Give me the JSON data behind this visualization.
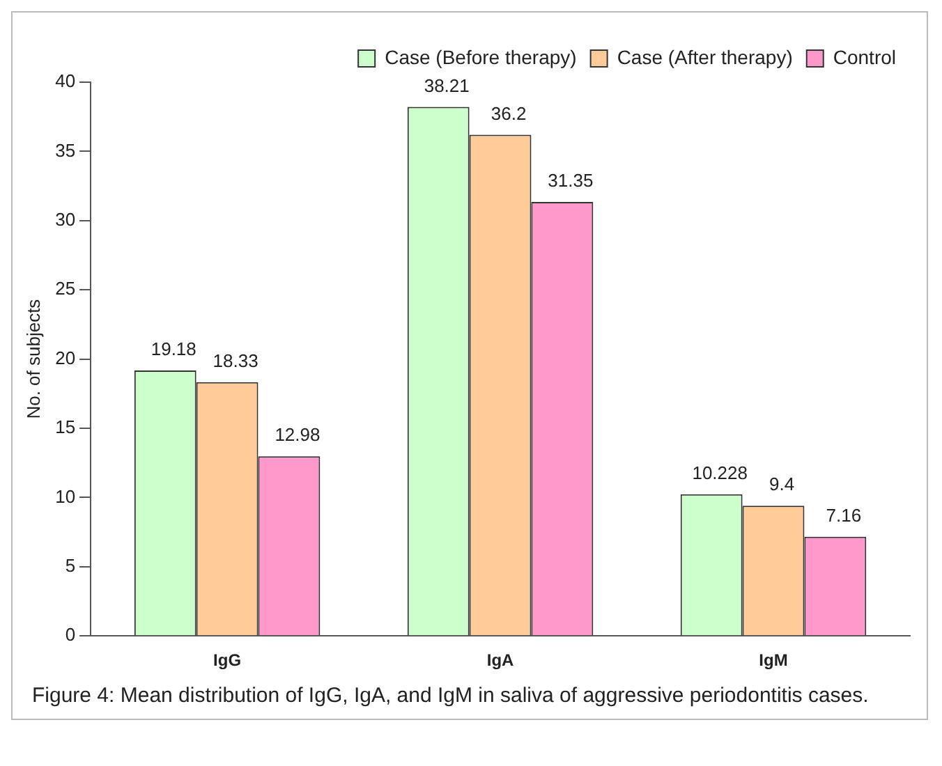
{
  "chart_data": {
    "type": "bar",
    "ylabel": "No. of subjects",
    "categories": [
      "IgG",
      "IgA",
      "IgM"
    ],
    "series": [
      {
        "name": "Case (Before therapy)",
        "color": "#ccffcc",
        "values": [
          19.18,
          38.21,
          10.228
        ]
      },
      {
        "name": "Case (After therapy)",
        "color": "#ffcc99",
        "values": [
          18.33,
          36.2,
          9.4
        ]
      },
      {
        "name": "Control",
        "color": "#ff99cc",
        "values": [
          12.98,
          31.35,
          7.16
        ]
      }
    ],
    "ylim": [
      0,
      40
    ],
    "yticks": [
      0,
      5,
      10,
      15,
      20,
      25,
      30,
      35,
      40
    ],
    "grid": false,
    "legend": "top right",
    "data_labels": true,
    "annotations": [
      "Figure 4: Mean distribution of IgG, IgA, and IgM in saliva of aggressive periodontitis cases."
    ]
  }
}
